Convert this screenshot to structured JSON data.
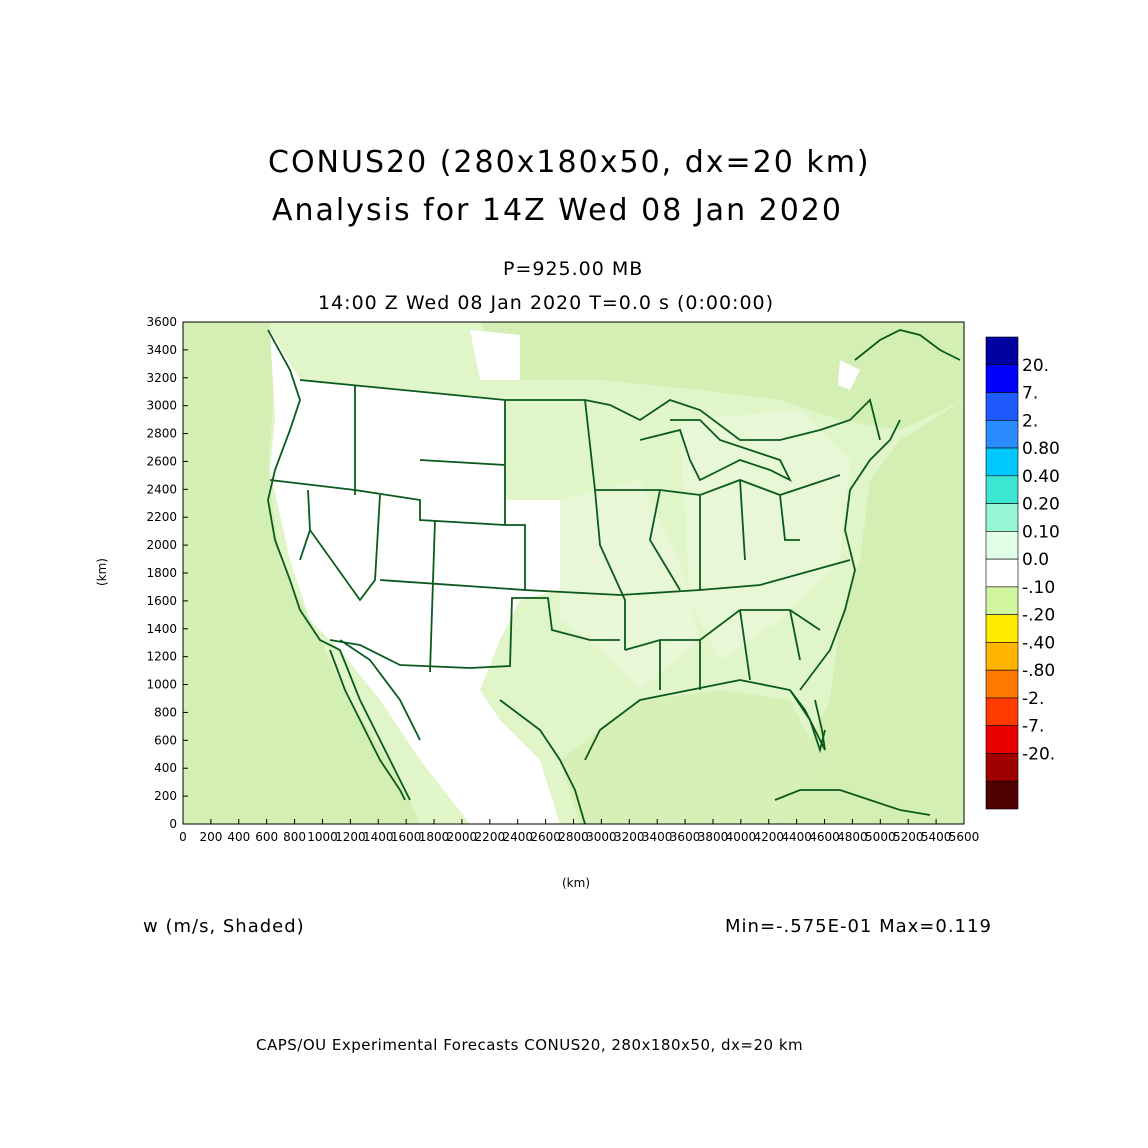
{
  "titles": {
    "line1": "CONUS20 (280x180x50, dx=20 km)",
    "line2": "Analysis for 14Z Wed 08 Jan 2020",
    "level": "P=925.00 MB",
    "time": "14:00 Z Wed 08 Jan 2020    T=0.0 s (0:00:00)"
  },
  "axes": {
    "x_label": "(km)",
    "y_label": "(km)",
    "x_ticks": [
      "0",
      "200",
      "400",
      "600",
      "800",
      "1000",
      "1200",
      "1400",
      "1600",
      "1800",
      "2000",
      "2200",
      "2400",
      "2600",
      "2800",
      "3000",
      "3200",
      "3400",
      "3600",
      "3800",
      "4000",
      "4200",
      "4400",
      "4600",
      "4800",
      "5000",
      "5200",
      "5400",
      "5600"
    ],
    "y_ticks": [
      "0",
      "200",
      "400",
      "600",
      "800",
      "1000",
      "1200",
      "1400",
      "1600",
      "1800",
      "2000",
      "2200",
      "2400",
      "2600",
      "2800",
      "3000",
      "3200",
      "3400",
      "3600"
    ]
  },
  "colorbar": {
    "labels": [
      "20.",
      "7.",
      "2.",
      "0.80",
      "0.40",
      "0.20",
      "0.10",
      "0.0",
      "-.10",
      "-.20",
      "-.40",
      "-.80",
      "-2.",
      "-7.",
      "-20."
    ],
    "colors": [
      "#0000a0",
      "#0000ff",
      "#1e5aff",
      "#2a8cff",
      "#00c8ff",
      "#3ce6d2",
      "#96f5d2",
      "#e0ffe6",
      "#ffffff",
      "#d2f5a0",
      "#ffeb00",
      "#ffb400",
      "#ff7800",
      "#ff3c00",
      "#e60000",
      "#a00000",
      "#500000"
    ]
  },
  "field": {
    "variable": "w (m/s, Shaded)",
    "minmax": "Min=-.575E-01 Max=0.119"
  },
  "footer": "CAPS/OU Experimental Forecasts  CONUS20, 280x180x50, dx=20 km"
}
